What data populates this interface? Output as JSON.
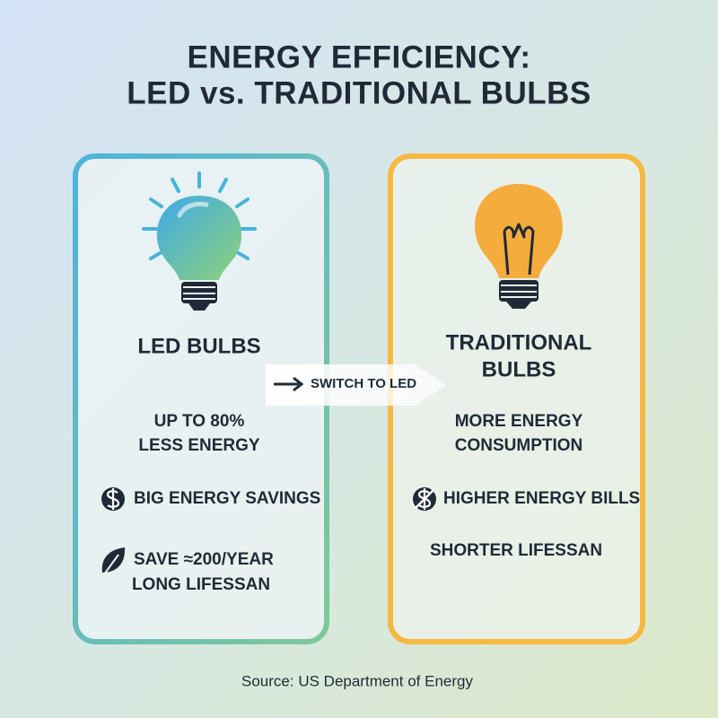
{
  "header": {
    "title_lines": [
      "ENERGY EFFICIENCY:",
      "LED vs. TRADITIONAL BULBS"
    ]
  },
  "left_card": {
    "title_lines": [
      "LED BULBS"
    ],
    "points": [
      {
        "lines": [
          "UP TO 80%",
          "LESS ENERGY"
        ]
      },
      {
        "lines": [
          "BIG ENERGY SAVINGS"
        ]
      },
      {
        "lines": [
          "SAVE ≈200/YEAR",
          "LONG LIFESSAN"
        ]
      }
    ]
  },
  "arrow": {
    "label": "SWITCH TO LED"
  },
  "right_card": {
    "title_lines": [
      "TRADITIONAL",
      "BULBS"
    ],
    "points": [
      {
        "lines": [
          "MORE ENERGY",
          "CONSUMPTION"
        ]
      },
      {
        "lines": [
          "HIGHER ENERGY BILLS"
        ]
      },
      {
        "lines": [
          "SHORTER LIFESSAN"
        ]
      }
    ]
  },
  "footer": {
    "source": "Source: US Department of Energy"
  }
}
